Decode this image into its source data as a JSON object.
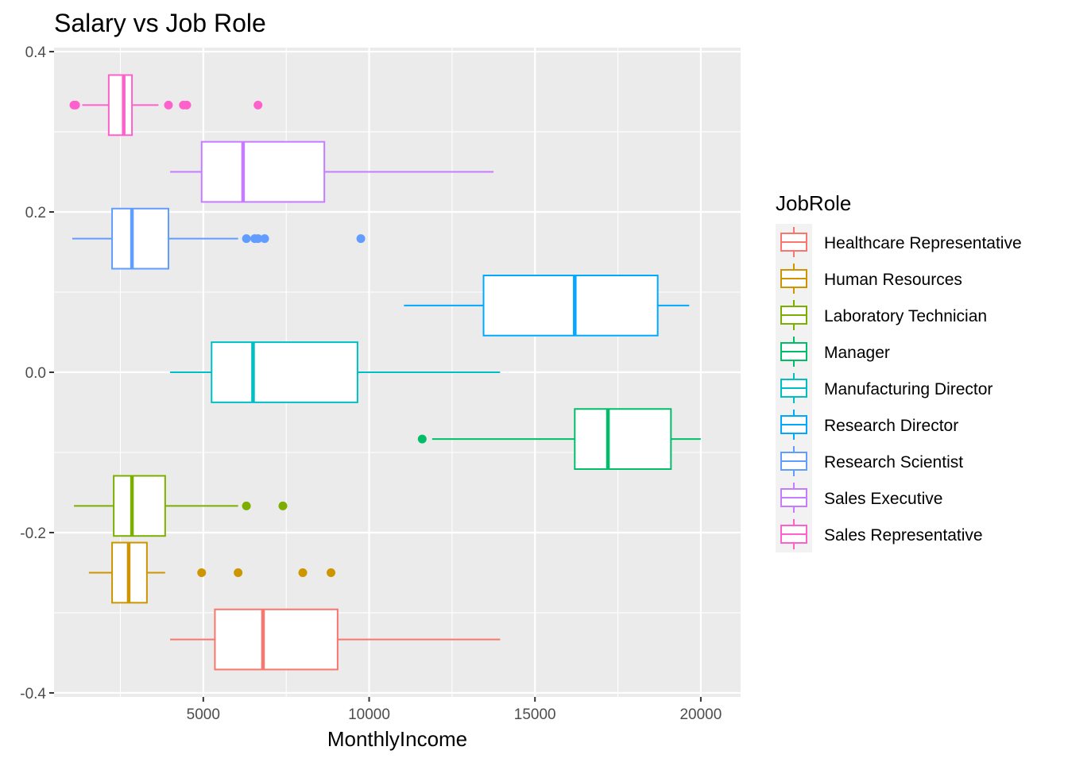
{
  "chart_data": {
    "type": "boxplot",
    "title": "Salary vs Job Role",
    "xlabel": "MonthlyIncome",
    "ylabel": "",
    "xlim": [
      500,
      21200
    ],
    "ylim": [
      -0.405,
      0.405
    ],
    "x_ticks": [
      5000,
      10000,
      15000,
      20000
    ],
    "x_tick_labels": [
      "5000",
      "10000",
      "15000",
      "20000"
    ],
    "y_ticks": [
      -0.4,
      -0.2,
      0.0,
      0.2,
      0.4
    ],
    "y_tick_labels": [
      "-0.4",
      "-0.2",
      "0.0",
      "0.2",
      "0.4"
    ],
    "grid": true,
    "legend_title": "JobRole",
    "legend_position": "right",
    "series": [
      {
        "name": "Healthcare Representative",
        "color": "#F8766D",
        "y_center": -0.3333,
        "whisker_low": 4000,
        "q1": 5350,
        "median": 6800,
        "q3": 9050,
        "whisker_high": 13950,
        "outliers": []
      },
      {
        "name": "Human Resources",
        "color": "#CD9600",
        "y_center": -0.25,
        "whisker_low": 1550,
        "q1": 2250,
        "median": 2750,
        "q3": 3300,
        "whisker_high": 3850,
        "outliers": [
          4950,
          6050,
          8000,
          8850
        ]
      },
      {
        "name": "Laboratory Technician",
        "color": "#7CAE00",
        "y_center": -0.1667,
        "whisker_low": 1100,
        "q1": 2300,
        "median": 2850,
        "q3": 3850,
        "whisker_high": 6050,
        "outliers": [
          6300,
          7400
        ]
      },
      {
        "name": "Manager",
        "color": "#00BE67",
        "y_center": -0.0833,
        "whisker_low": 11900,
        "q1": 16200,
        "median": 17200,
        "q3": 19100,
        "whisker_high": 19999,
        "outliers": [
          11600
        ]
      },
      {
        "name": "Manufacturing Director",
        "color": "#00BFC4",
        "y_center": 0.0,
        "whisker_low": 4000,
        "q1": 5250,
        "median": 6500,
        "q3": 9650,
        "whisker_high": 13950,
        "outliers": []
      },
      {
        "name": "Research Director",
        "color": "#00A9FF",
        "y_center": 0.0833,
        "whisker_low": 11050,
        "q1": 13450,
        "median": 16200,
        "q3": 18700,
        "whisker_high": 19650,
        "outliers": []
      },
      {
        "name": "Research Scientist",
        "color": "#619CFF",
        "y_center": 0.1667,
        "whisker_low": 1050,
        "q1": 2250,
        "median": 2850,
        "q3": 3950,
        "whisker_high": 6050,
        "outliers": [
          6300,
          6550,
          6650,
          6850,
          9750
        ]
      },
      {
        "name": "Sales Executive",
        "color": "#C77CFF",
        "y_center": 0.25,
        "whisker_low": 4000,
        "q1": 4950,
        "median": 6200,
        "q3": 8650,
        "whisker_high": 13750,
        "outliers": []
      },
      {
        "name": "Sales Representative",
        "color": "#FF61CC",
        "y_center": 0.3333,
        "whisker_low": 1350,
        "q1": 2150,
        "median": 2600,
        "q3": 2850,
        "whisker_high": 3650,
        "outliers": [
          1100,
          1150,
          3950,
          4400,
          4500,
          6650
        ]
      }
    ]
  }
}
